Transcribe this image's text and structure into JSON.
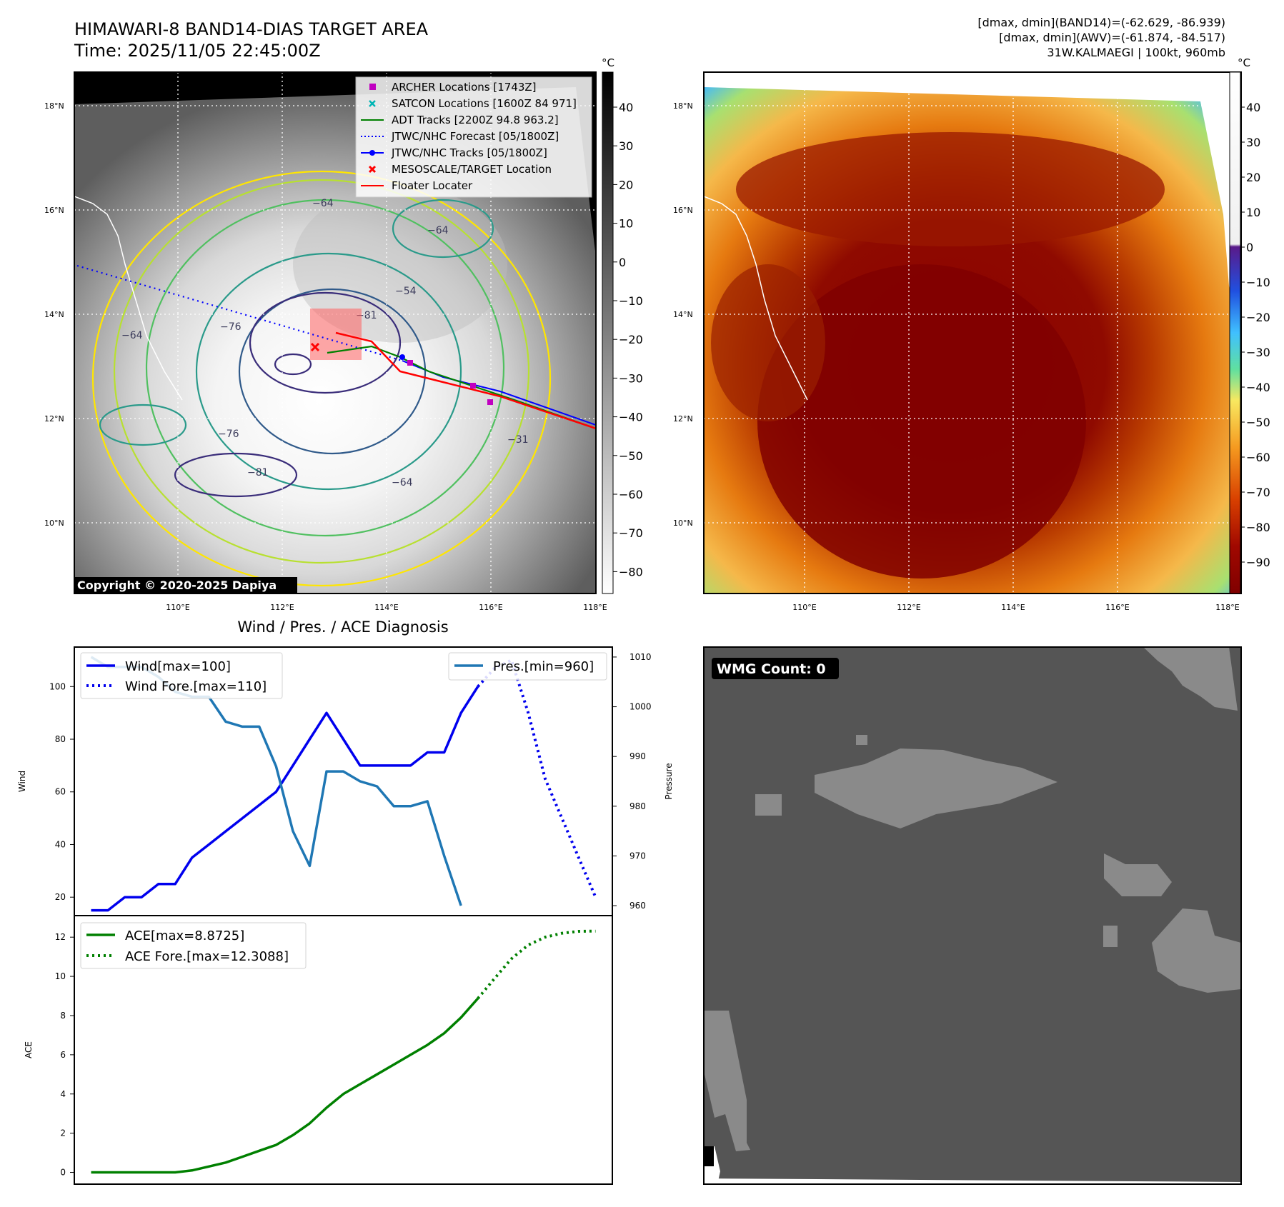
{
  "header": {
    "title_line1": "HIMAWARI-8 BAND14-DIAS TARGET AREA",
    "title_line2": "Time: 2025/11/05 22:45:00Z",
    "info_line1": "[dmax, dmin](BAND14)=(-62.629, -86.939)",
    "info_line2": "[dmax, dmin](AWV)=(-61.874, -84.517)",
    "info_line3": "31W.KALMAEGI | 100kt, 960mb"
  },
  "map_axes": {
    "lon_ticks": [
      "110°E",
      "112°E",
      "114°E",
      "116°E",
      "118°E"
    ],
    "lat_ticks": [
      "18°N",
      "16°N",
      "14°N",
      "12°N",
      "10°N"
    ]
  },
  "ir_panel": {
    "colorbar_unit": "°C",
    "colorbar_ticks": [
      "40",
      "30",
      "20",
      "10",
      "0",
      "−10",
      "−20",
      "−30",
      "−40",
      "−50",
      "−60",
      "−70",
      "−80"
    ],
    "copyright": "Copyright © 2020-2025 Dapiya",
    "contour_labels": [
      "−81",
      "−76",
      "−64",
      "−54",
      "−64",
      "−31",
      "−64",
      "−64",
      "−81",
      "−76"
    ],
    "legend": [
      {
        "label": "ARCHER Locations [1743Z]",
        "color": "#c000c0",
        "marker": "square"
      },
      {
        "label": "SATCON Locations [1600Z 84 971]",
        "color": "#00b5b5",
        "marker": "x"
      },
      {
        "label": "ADT Tracks [2200Z 94.8 963.2]",
        "color": "#008000",
        "marker": "line"
      },
      {
        "label": "JTWC/NHC Forecast [05/1800Z]",
        "color": "#0000ff",
        "marker": "dotted"
      },
      {
        "label": "JTWC/NHC Tracks [05/1800Z]",
        "color": "#0000ff",
        "marker": "line-dot"
      },
      {
        "label": "MESOSCALE/TARGET Location",
        "color": "#ff0000",
        "marker": "x"
      },
      {
        "label": "Floater Locater",
        "color": "#ff0000",
        "marker": "line"
      }
    ]
  },
  "awv_panel": {
    "colorbar_unit": "°C",
    "colorbar_ticks": [
      "40",
      "30",
      "20",
      "10",
      "0",
      "−10",
      "−20",
      "−30",
      "−40",
      "−50",
      "−60",
      "−70",
      "−80",
      "−90"
    ]
  },
  "wmg_panel": {
    "badge": "WMG Count: 0"
  },
  "chart_data": [
    {
      "type": "line",
      "title": "Wind / Pres. / ACE Diagnosis",
      "ylabel": "Wind",
      "ylabel_right": "Pressure",
      "ylim": [
        13,
        115
      ],
      "ylim_right": [
        958,
        1012
      ],
      "y_ticks": [
        20,
        40,
        60,
        80,
        100
      ],
      "y_ticks_right": [
        960,
        970,
        980,
        990,
        1000,
        1010
      ],
      "grid": false,
      "legend_left": "top-left",
      "legend_right": "top-right",
      "series": [
        {
          "name": "Wind[max=100]",
          "color": "#0000ee",
          "style": "solid",
          "x": [
            0,
            1,
            2,
            3,
            4,
            5,
            6,
            7,
            8,
            9,
            10,
            11,
            12,
            13,
            14,
            15,
            16,
            17,
            18,
            19,
            20,
            21,
            22,
            23,
            24,
            25
          ],
          "values": [
            15,
            15,
            20,
            20,
            25,
            25,
            35,
            40,
            45,
            50,
            55,
            60,
            70,
            80,
            90,
            80,
            70,
            70,
            70,
            70,
            75,
            75,
            90,
            100,
            null,
            null
          ]
        },
        {
          "name": "Wind Fore.[max=110]",
          "color": "#0000ee",
          "style": "dotted",
          "x": [
            23,
            24,
            25,
            26,
            27,
            28,
            29,
            30
          ],
          "values": [
            100,
            107,
            110,
            90,
            65,
            50,
            35,
            20
          ]
        },
        {
          "name": "Pres.[min=960]",
          "color": "#1f77b4",
          "style": "solid",
          "axis": "right",
          "x": [
            0,
            1,
            2,
            3,
            4,
            5,
            6,
            7,
            8,
            9,
            10,
            11,
            12,
            13,
            14,
            15,
            16,
            17,
            18,
            19,
            20,
            21,
            22,
            23
          ],
          "values": [
            1010,
            1008,
            1008,
            1008,
            1006,
            1003,
            1002,
            1002,
            997,
            996,
            996,
            988,
            975,
            968,
            987,
            987,
            985,
            984,
            980,
            980,
            981,
            970,
            960,
            null
          ]
        }
      ],
      "x_range": [
        -1,
        31
      ]
    },
    {
      "type": "line",
      "ylabel": "ACE",
      "ylim": [
        -0.6,
        13.1
      ],
      "y_ticks": [
        0,
        2,
        4,
        6,
        8,
        10,
        12
      ],
      "grid": false,
      "legend": "top-left",
      "series": [
        {
          "name": "ACE[max=8.8725]",
          "color": "#008000",
          "style": "solid",
          "x": [
            0,
            1,
            2,
            3,
            4,
            5,
            6,
            7,
            8,
            9,
            10,
            11,
            12,
            13,
            14,
            15,
            16,
            17,
            18,
            19,
            20,
            21,
            22,
            23
          ],
          "values": [
            0,
            0,
            0,
            0,
            0,
            0,
            0.1,
            0.3,
            0.5,
            0.8,
            1.1,
            1.4,
            1.9,
            2.5,
            3.3,
            4.0,
            4.5,
            5.0,
            5.5,
            6.0,
            6.5,
            7.1,
            7.9,
            8.8725
          ]
        },
        {
          "name": "ACE Fore.[max=12.3088]",
          "color": "#008000",
          "style": "dotted",
          "x": [
            23,
            24,
            25,
            26,
            27,
            28,
            29,
            30
          ],
          "values": [
            8.8725,
            9.9,
            10.9,
            11.6,
            12.0,
            12.2,
            12.3,
            12.3088
          ]
        }
      ],
      "x_range": [
        -1,
        31
      ]
    }
  ]
}
